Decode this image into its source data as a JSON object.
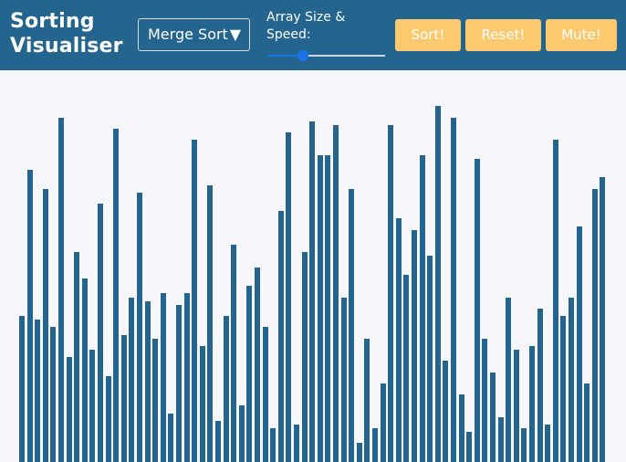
{
  "app": {
    "title_line1": "Sorting",
    "title_line2": "Visualiser"
  },
  "controls": {
    "algorithm_selected": "Merge Sort",
    "dropdown_arrow": "▼",
    "size_speed_label": "Array Size & Speed:",
    "slider_value_fraction": 0.3,
    "sort_label": "Sort!",
    "reset_label": "Reset!",
    "mute_label": "Mute!"
  },
  "colors": {
    "header": "#23658f",
    "bar": "#23658f",
    "button": "#fdc96f",
    "slider": "#1a73e8"
  },
  "chart_data": {
    "type": "bar",
    "ylim": [
      0,
      1
    ],
    "values": [
      0.39,
      0.78,
      0.38,
      0.73,
      0.36,
      0.92,
      0.28,
      0.56,
      0.49,
      0.3,
      0.69,
      0.23,
      0.89,
      0.34,
      0.44,
      0.72,
      0.43,
      0.33,
      0.45,
      0.13,
      0.42,
      0.45,
      0.86,
      0.31,
      0.74,
      0.11,
      0.39,
      0.58,
      0.15,
      0.47,
      0.52,
      0.36,
      0.09,
      0.67,
      0.88,
      0.1,
      0.56,
      0.91,
      0.82,
      0.82,
      0.9,
      0.44,
      0.73,
      0.05,
      0.33,
      0.09,
      0.21,
      0.9,
      0.65,
      0.5,
      0.62,
      0.82,
      0.55,
      0.95,
      0.27,
      0.92,
      0.18,
      0.08,
      0.81,
      0.33,
      0.24,
      0.12,
      0.44,
      0.3,
      0.09,
      0.31,
      0.41,
      0.1,
      0.86,
      0.39,
      0.44,
      0.63,
      0.21,
      0.73,
      0.76
    ]
  }
}
